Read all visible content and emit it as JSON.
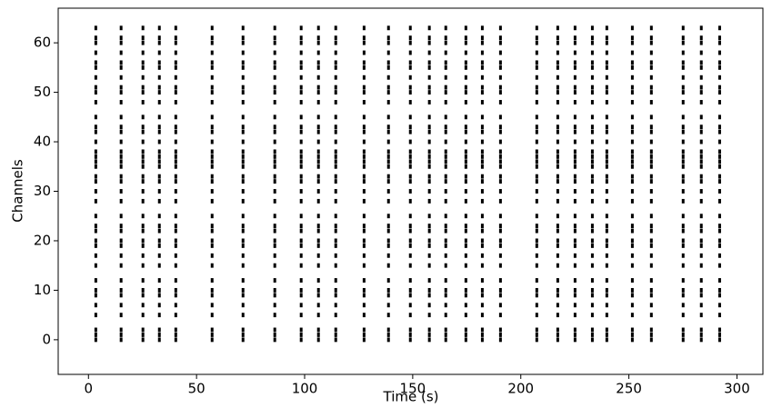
{
  "chart_data": {
    "type": "eventplot",
    "xlabel": "Time (s)",
    "ylabel": "Channels",
    "xlim": [
      -14,
      312
    ],
    "ylim": [
      -7,
      67
    ],
    "xticks": [
      0,
      50,
      100,
      150,
      200,
      250,
      300
    ],
    "yticks": [
      0,
      10,
      20,
      30,
      40,
      50,
      60
    ],
    "color": "#000000",
    "bursts": [
      3.4,
      15.1,
      25.2,
      32.8,
      40.4,
      57.2,
      71.5,
      86.2,
      98.4,
      106.4,
      114.4,
      127.5,
      138.8,
      148.9,
      157.7,
      165.3,
      174.6,
      182.2,
      190.6,
      207.4,
      217.1,
      225.1,
      233.1,
      239.8,
      251.6,
      260.4,
      275.1,
      283.5,
      292.0
    ],
    "channels": [
      0,
      1,
      2,
      5,
      7,
      9,
      10,
      12,
      15,
      17,
      19,
      20,
      22,
      23,
      25,
      28,
      30,
      32,
      33,
      35,
      36,
      37,
      38,
      40,
      42,
      43,
      45,
      48,
      50,
      51,
      53,
      55,
      56,
      58,
      60,
      61,
      63
    ]
  }
}
